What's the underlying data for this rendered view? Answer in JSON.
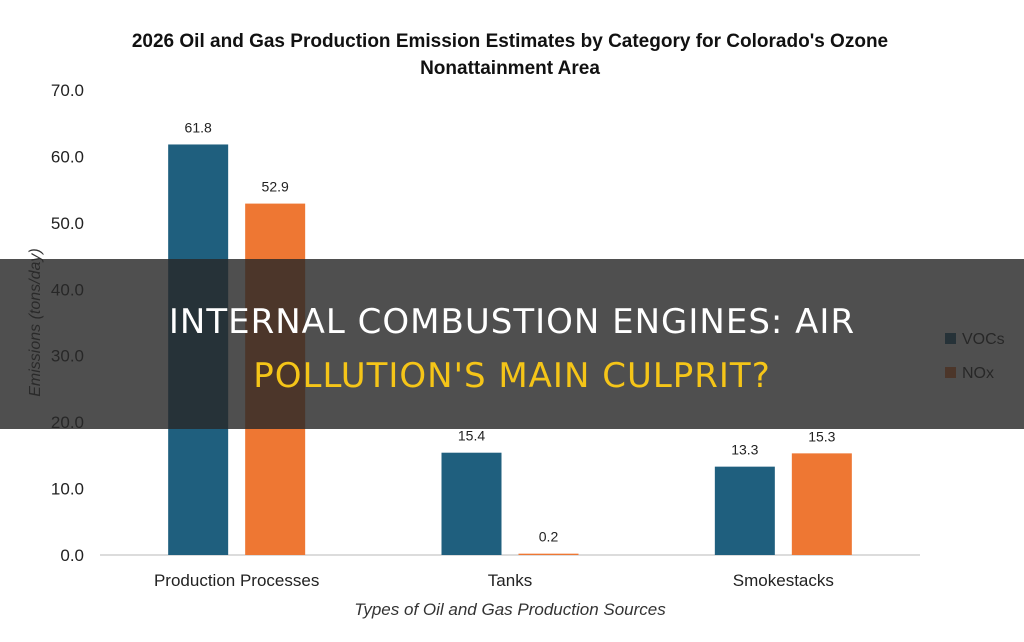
{
  "chart_data": {
    "type": "bar",
    "title": "2026 Oil and Gas Production Emission Estimates by Category for Colorado's Ozone Nonattainment Area",
    "xlabel": "Types of Oil and Gas Production Sources",
    "ylabel": "Emissions (tons/day)",
    "categories": [
      "Production Processes",
      "Tanks",
      "Smokestacks"
    ],
    "series": [
      {
        "name": "VOCs",
        "values": [
          61.8,
          15.4,
          13.3
        ],
        "color": "#1f5f7e"
      },
      {
        "name": "NOx",
        "values": [
          52.9,
          0.2,
          15.3
        ],
        "color": "#ee7733"
      }
    ],
    "data_labels": [
      [
        "61.8",
        "15.4",
        "13.3"
      ],
      [
        "52.9",
        "0.2",
        "15.3"
      ]
    ],
    "ylim": [
      0,
      70
    ],
    "yticks": [
      "0.0",
      "10.0",
      "20.0",
      "30.0",
      "40.0",
      "50.0",
      "60.0",
      "70.0"
    ],
    "grid": false,
    "legend": "right"
  },
  "overlay": {
    "headline_line1": "Internal Combustion Engines: Air",
    "headline_line2": "Pollution's Main Culprit?"
  }
}
